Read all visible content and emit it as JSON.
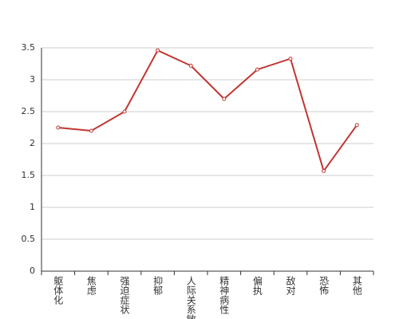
{
  "chart_data": {
    "type": "line",
    "categories": [
      "躯体化",
      "焦虑",
      "强迫症状",
      "抑郁",
      "人际关系敏感",
      "精神病性",
      "偏执",
      "敌对",
      "恐怖",
      "其他"
    ],
    "values": [
      2.25,
      2.2,
      2.5,
      3.46,
      3.22,
      2.7,
      3.16,
      3.33,
      1.57,
      2.29
    ],
    "color": "#c23531",
    "ylim": [
      0,
      3.5
    ],
    "yticks": [
      0,
      0.5,
      1,
      1.5,
      2,
      2.5,
      3,
      3.5
    ],
    "grid": true
  }
}
